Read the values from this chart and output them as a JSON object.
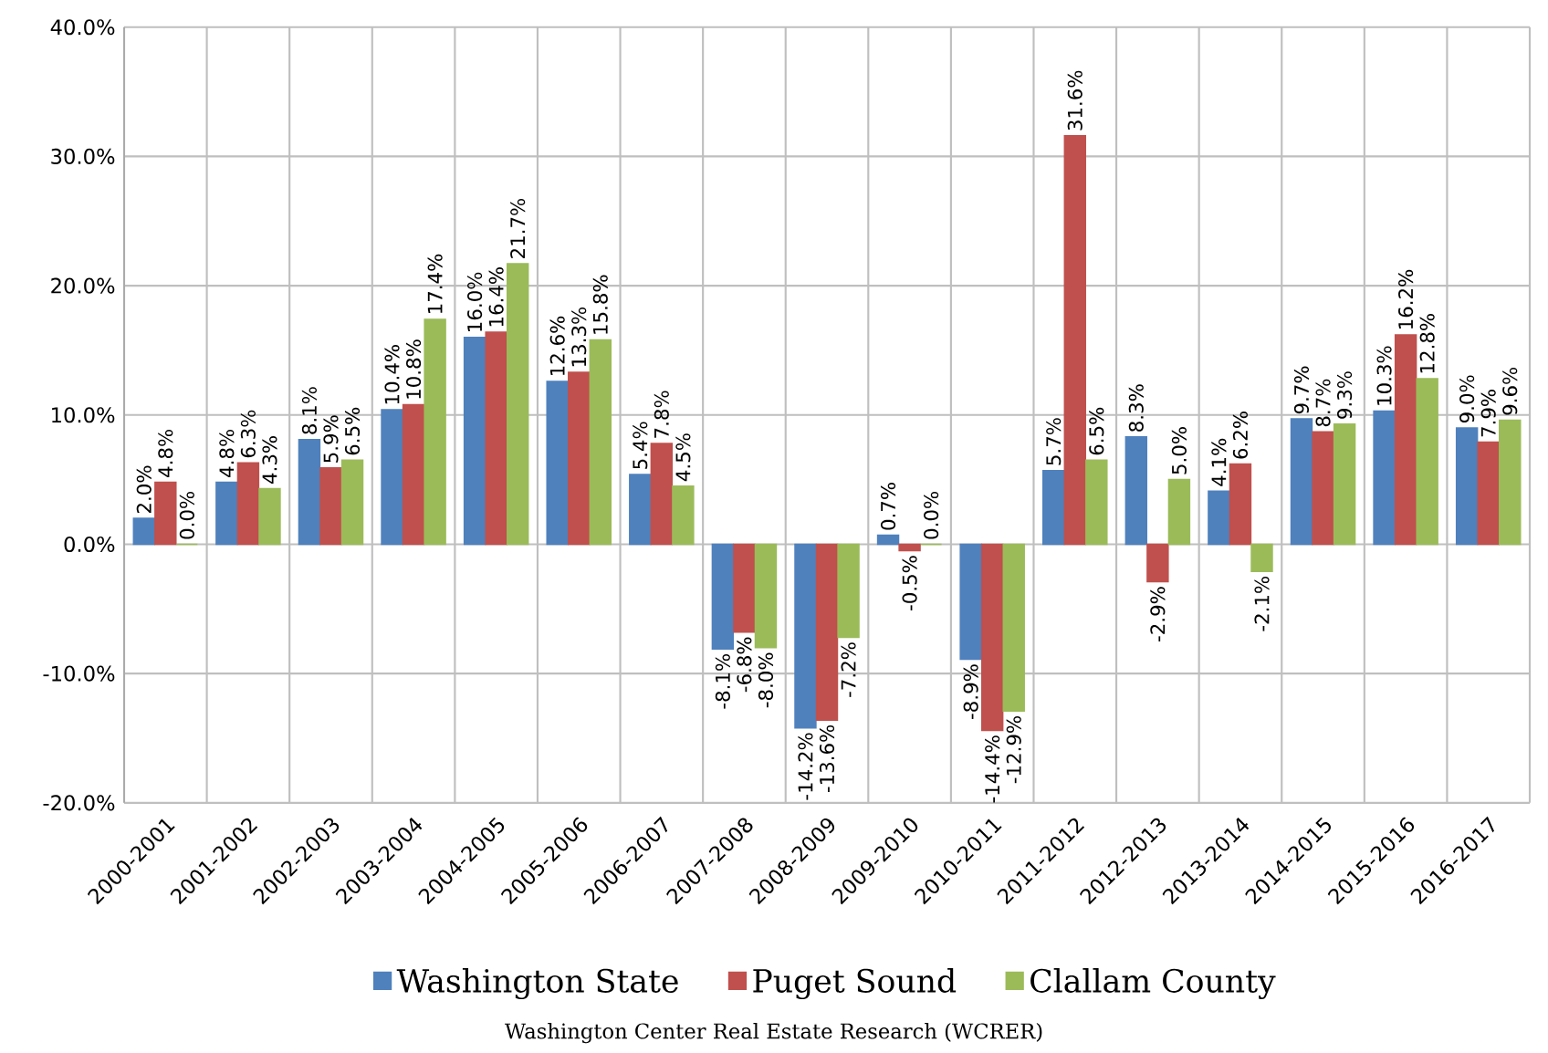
{
  "chart_data": {
    "type": "bar",
    "categories": [
      "2000-2001",
      "2001-2002",
      "2002-2003",
      "2003-2004",
      "2004-2005",
      "2005-2006",
      "2006-2007",
      "2007-2008",
      "2008-2009",
      "2009-2010",
      "2010-2011",
      "2011-2012",
      "2012-2013",
      "2013-2014",
      "2014-2015",
      "2015-2016",
      "2016-2017"
    ],
    "series": [
      {
        "name": "Washington State",
        "color": "#4f81bd",
        "values": [
          2.0,
          4.8,
          8.1,
          10.4,
          16.0,
          12.6,
          5.4,
          -8.1,
          -14.2,
          0.7,
          -8.9,
          5.7,
          8.3,
          4.1,
          9.7,
          10.3,
          9.0
        ],
        "value_labels": [
          "2.0%",
          "4.8%",
          "8.1%",
          "10.4%",
          "16.0%",
          "12.6%",
          "5.4%",
          "-8.1%",
          "-14.2%",
          "0.7%",
          "-8.9%",
          "5.7%",
          "8.3%",
          "4.1%",
          "9.7%",
          "10.3%",
          "9.0%"
        ]
      },
      {
        "name": "Puget Sound",
        "color": "#c0504d",
        "values": [
          4.8,
          6.3,
          5.9,
          10.8,
          16.4,
          13.3,
          7.8,
          -6.8,
          -13.6,
          -0.5,
          -14.4,
          31.6,
          -2.9,
          6.2,
          8.7,
          16.2,
          7.9
        ],
        "value_labels": [
          "4.8%",
          "6.3%",
          "5.9%",
          "10.8%",
          "16.4%",
          "13.3%",
          "7.8%",
          "-6.8%",
          "-13.6%",
          "-0.5%",
          "-14.4%",
          "31.6%",
          "-2.9%",
          "6.2%",
          "8.7%",
          "16.2%",
          "7.9%"
        ]
      },
      {
        "name": "Clallam County",
        "color": "#9bbb59",
        "values": [
          0.0,
          4.3,
          6.5,
          17.4,
          21.7,
          15.8,
          4.5,
          -8.0,
          -7.2,
          0.0,
          -12.9,
          6.5,
          5.0,
          -2.1,
          9.3,
          12.8,
          9.6
        ],
        "value_labels": [
          "0.0%",
          "4.3%",
          "6.5%",
          "17.4%",
          "21.7%",
          "15.8%",
          "4.5%",
          "-8.0%",
          "-7.2%",
          "0.0%",
          "-12.9%",
          "6.5%",
          "5.0%",
          "-2.1%",
          "9.3%",
          "12.8%",
          "9.6%"
        ]
      }
    ],
    "ylim": [
      -20,
      40
    ],
    "yticks": [
      {
        "value": -20,
        "label": "-20.0%"
      },
      {
        "value": -10,
        "label": "-10.0%"
      },
      {
        "value": 0,
        "label": "0.0%"
      },
      {
        "value": 10,
        "label": "10.0%"
      },
      {
        "value": 20,
        "label": "20.0%"
      },
      {
        "value": 30,
        "label": "30.0%"
      },
      {
        "value": 40,
        "label": "40.0%"
      }
    ],
    "grid": true,
    "legend": "bottom",
    "annotations": [
      "Washington Center Real Estate Research (WCRER)"
    ]
  }
}
